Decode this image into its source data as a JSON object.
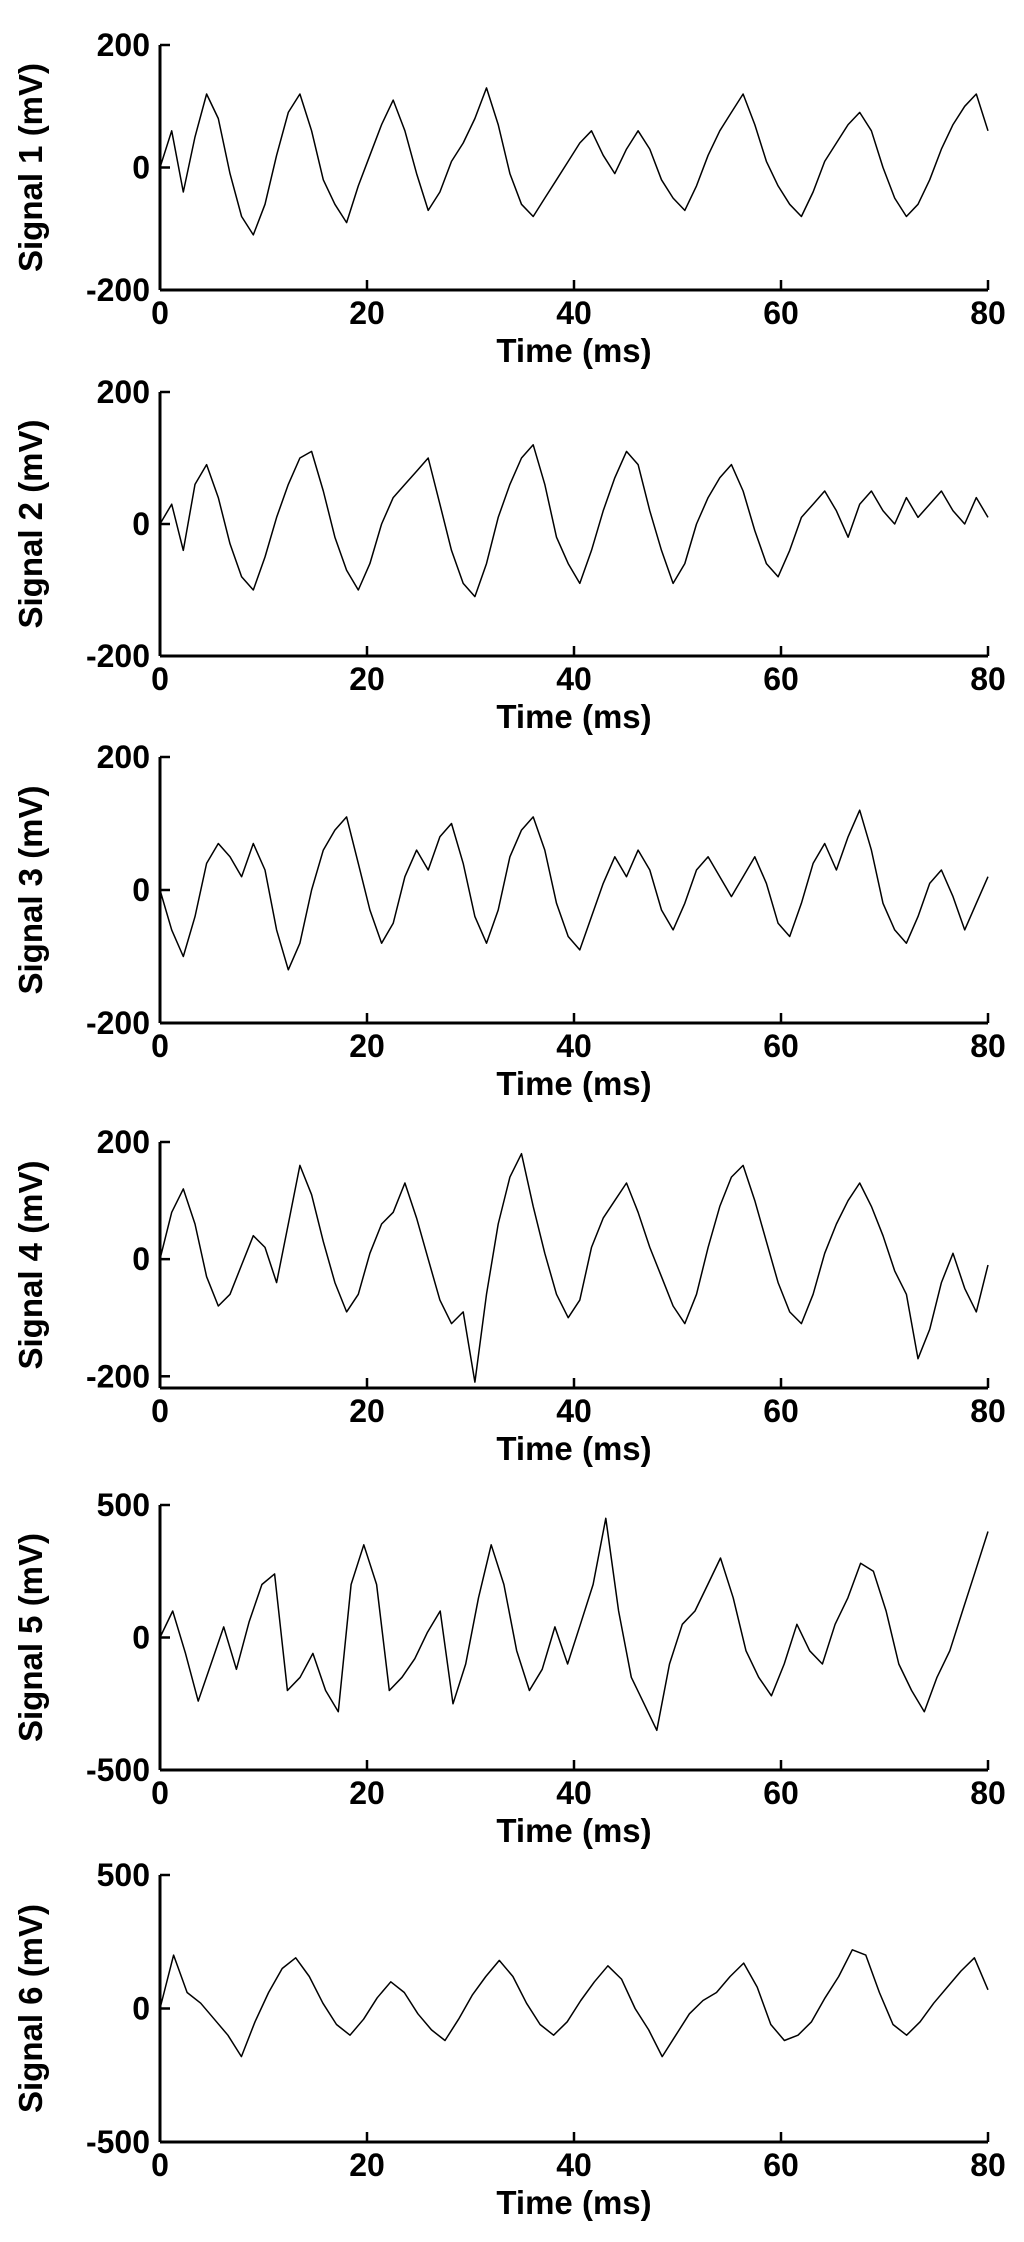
{
  "chart_data": [
    {
      "type": "line",
      "ylabel": "Signal 1  (mV)",
      "xlabel": "Time (ms)",
      "xlim": [
        0,
        80
      ],
      "ylim": [
        -200,
        200
      ],
      "xticks": [
        "0",
        "20",
        "40",
        "60",
        "80"
      ],
      "yticks": [
        "200",
        "0",
        "-200"
      ],
      "grid": false,
      "series": [
        {
          "values": [
            0,
            60,
            -40,
            50,
            120,
            80,
            -10,
            -80,
            -110,
            -60,
            20,
            90,
            120,
            60,
            -20,
            -60,
            -90,
            -30,
            20,
            70,
            110,
            60,
            -10,
            -70,
            -40,
            10,
            40,
            80,
            130,
            70,
            -10,
            -60,
            -80,
            -50,
            -20,
            10,
            40,
            60,
            20,
            -10,
            30,
            60,
            30,
            -20,
            -50,
            -70,
            -30,
            20,
            60,
            90,
            120,
            70,
            10,
            -30,
            -60,
            -80,
            -40,
            10,
            40,
            70,
            90,
            60,
            0,
            -50,
            -80,
            -60,
            -20,
            30,
            70,
            100,
            120,
            60
          ]
        }
      ]
    },
    {
      "type": "line",
      "ylabel": "Signal 2  (mV)",
      "xlabel": "Time (ms)",
      "xlim": [
        0,
        80
      ],
      "ylim": [
        -200,
        200
      ],
      "xticks": [
        "0",
        "20",
        "40",
        "60",
        "80"
      ],
      "yticks": [
        "200",
        "0",
        "-200"
      ],
      "grid": false,
      "series": [
        {
          "values": [
            0,
            30,
            -40,
            60,
            90,
            40,
            -30,
            -80,
            -100,
            -50,
            10,
            60,
            100,
            110,
            50,
            -20,
            -70,
            -100,
            -60,
            0,
            40,
            60,
            80,
            100,
            30,
            -40,
            -90,
            -110,
            -60,
            10,
            60,
            100,
            120,
            60,
            -20,
            -60,
            -90,
            -40,
            20,
            70,
            110,
            90,
            20,
            -40,
            -90,
            -60,
            0,
            40,
            70,
            90,
            50,
            -10,
            -60,
            -80,
            -40,
            10,
            30,
            50,
            20,
            -20,
            30,
            50,
            20,
            0,
            40,
            10,
            30,
            50,
            20,
            0,
            40,
            10
          ]
        }
      ]
    },
    {
      "type": "line",
      "ylabel": "Signal 3  (mV)",
      "xlabel": "Time (ms)",
      "xlim": [
        0,
        80
      ],
      "ylim": [
        -200,
        200
      ],
      "xticks": [
        "0",
        "20",
        "40",
        "60",
        "80"
      ],
      "yticks": [
        "200",
        "0",
        "-200"
      ],
      "grid": false,
      "series": [
        {
          "values": [
            0,
            -60,
            -100,
            -40,
            40,
            70,
            50,
            20,
            70,
            30,
            -60,
            -120,
            -80,
            0,
            60,
            90,
            110,
            40,
            -30,
            -80,
            -50,
            20,
            60,
            30,
            80,
            100,
            40,
            -40,
            -80,
            -30,
            50,
            90,
            110,
            60,
            -20,
            -70,
            -90,
            -40,
            10,
            50,
            20,
            60,
            30,
            -30,
            -60,
            -20,
            30,
            50,
            20,
            -10,
            20,
            50,
            10,
            -50,
            -70,
            -20,
            40,
            70,
            30,
            80,
            120,
            60,
            -20,
            -60,
            -80,
            -40,
            10,
            30,
            -10,
            -60,
            -20,
            20
          ]
        }
      ]
    },
    {
      "type": "line",
      "ylabel": "Signal 4  (mV)",
      "xlabel": "Time (ms)",
      "xlim": [
        0,
        80
      ],
      "ylim": [
        -220,
        200
      ],
      "xticks": [
        "0",
        "20",
        "40",
        "60",
        "80"
      ],
      "yticks": [
        "200",
        "0",
        "-200"
      ],
      "grid": false,
      "series": [
        {
          "values": [
            0,
            80,
            120,
            60,
            -30,
            -80,
            -60,
            -10,
            40,
            20,
            -40,
            60,
            160,
            110,
            30,
            -40,
            -90,
            -60,
            10,
            60,
            80,
            130,
            70,
            0,
            -70,
            -110,
            -90,
            -210,
            -60,
            60,
            140,
            180,
            90,
            10,
            -60,
            -100,
            -70,
            20,
            70,
            100,
            130,
            80,
            20,
            -30,
            -80,
            -110,
            -60,
            20,
            90,
            140,
            160,
            100,
            30,
            -40,
            -90,
            -110,
            -60,
            10,
            60,
            100,
            130,
            90,
            40,
            -20,
            -60,
            -170,
            -120,
            -40,
            10,
            -50,
            -90,
            -10
          ]
        }
      ]
    },
    {
      "type": "line",
      "ylabel": "Signal 5  (mV)",
      "xlabel": "Time (ms)",
      "xlim": [
        0,
        80
      ],
      "ylim": [
        -500,
        500
      ],
      "xticks": [
        "0",
        "20",
        "40",
        "60",
        "80"
      ],
      "yticks": [
        "500",
        "0",
        "-500"
      ],
      "grid": false,
      "series": [
        {
          "values": [
            0,
            100,
            -60,
            -240,
            -100,
            40,
            -120,
            60,
            200,
            240,
            -200,
            -150,
            -60,
            -200,
            -280,
            200,
            350,
            200,
            -200,
            -150,
            -80,
            20,
            100,
            -250,
            -100,
            150,
            350,
            200,
            -50,
            -200,
            -120,
            40,
            -100,
            50,
            200,
            450,
            100,
            -150,
            -250,
            -350,
            -100,
            50,
            100,
            200,
            300,
            150,
            -50,
            -150,
            -220,
            -100,
            50,
            -50,
            -100,
            50,
            150,
            280,
            250,
            100,
            -100,
            -200,
            -280,
            -150,
            -50,
            100,
            250,
            400
          ]
        }
      ]
    },
    {
      "type": "line",
      "ylabel": "Signal 6  (mV)",
      "xlabel": "Time (ms)",
      "xlim": [
        0,
        80
      ],
      "ylim": [
        -500,
        500
      ],
      "xticks": [
        "0",
        "20",
        "40",
        "60",
        "80"
      ],
      "yticks": [
        "500",
        "0",
        "-500"
      ],
      "grid": false,
      "series": [
        {
          "values": [
            0,
            200,
            60,
            20,
            -40,
            -100,
            -180,
            -50,
            60,
            150,
            190,
            120,
            20,
            -60,
            -100,
            -40,
            40,
            100,
            60,
            -20,
            -80,
            -120,
            -40,
            50,
            120,
            180,
            120,
            20,
            -60,
            -100,
            -50,
            30,
            100,
            160,
            110,
            0,
            -80,
            -180,
            -100,
            -20,
            30,
            60,
            120,
            170,
            80,
            -60,
            -120,
            -100,
            -50,
            40,
            120,
            220,
            200,
            60,
            -60,
            -100,
            -50,
            20,
            80,
            140,
            190,
            70
          ]
        }
      ]
    }
  ]
}
